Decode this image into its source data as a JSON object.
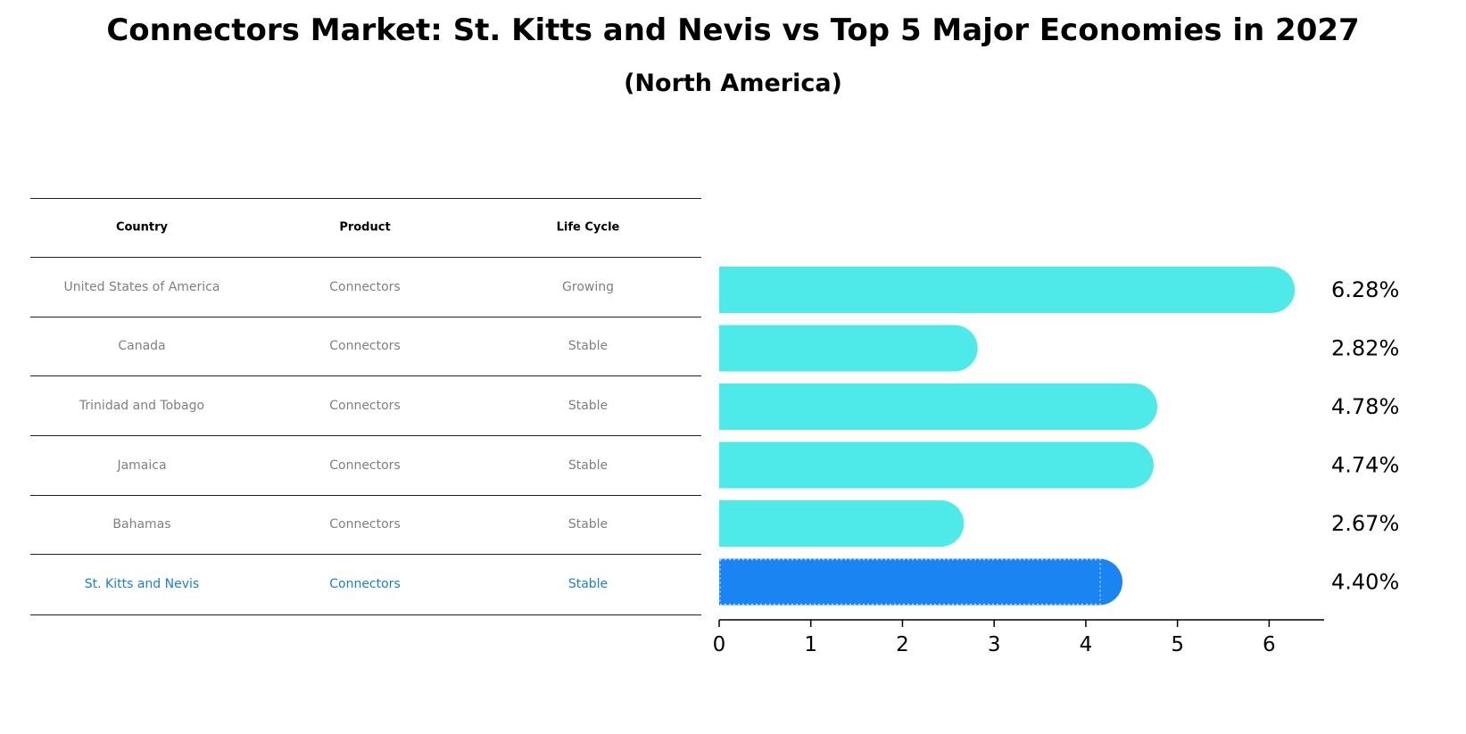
{
  "title": "Connectors Market: St. Kitts and Nevis vs Top 5 Major Economies in 2027",
  "subtitle": "(North America)",
  "table": {
    "headers": [
      "Country",
      "Product",
      "Life Cycle"
    ],
    "rows": [
      {
        "country": "United States of America",
        "product": "Connectors",
        "life_cycle": "Growing"
      },
      {
        "country": "Canada",
        "product": "Connectors",
        "life_cycle": "Stable"
      },
      {
        "country": "Trinidad and Tobago",
        "product": "Connectors",
        "life_cycle": "Stable"
      },
      {
        "country": "Jamaica",
        "product": "Connectors",
        "life_cycle": "Stable"
      },
      {
        "country": "Bahamas",
        "product": "Connectors",
        "life_cycle": "Stable"
      },
      {
        "country": "St. Kitts and Nevis",
        "product": "Connectors",
        "life_cycle": "Stable"
      }
    ],
    "highlight_index": 5
  },
  "colors": {
    "bar": "#4eeaea",
    "highlight_bar": "#1a84f2",
    "highlight_text": "#1a7fd4",
    "muted_text": "#808080"
  },
  "chart_data": {
    "type": "bar",
    "orientation": "horizontal",
    "categories": [
      "United States of America",
      "Canada",
      "Trinidad and Tobago",
      "Jamaica",
      "Bahamas",
      "St. Kitts and Nevis"
    ],
    "values": [
      6.28,
      2.82,
      4.78,
      4.74,
      2.67,
      4.4
    ],
    "value_labels": [
      "6.28%",
      "2.82%",
      "4.78%",
      "4.74%",
      "2.67%",
      "4.40%"
    ],
    "xlim": [
      0,
      6.6
    ],
    "xticks": [
      0,
      1,
      2,
      3,
      4,
      5,
      6
    ],
    "highlight_index": 5,
    "xlabel": "",
    "ylabel": ""
  }
}
